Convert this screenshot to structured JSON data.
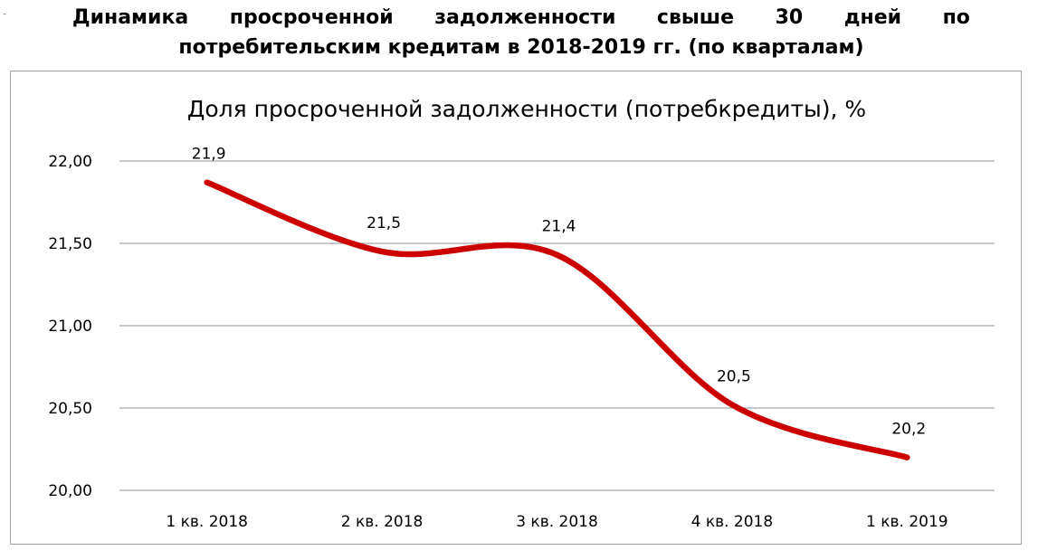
{
  "marker": "-",
  "heading": {
    "line1_words": [
      "Динамика",
      "просроченной",
      "задолженности",
      "свыше",
      "30",
      "дней",
      "по"
    ],
    "line2": "потребительским кредитам в 2018-2019 гг. (по кварталам)"
  },
  "chart_data": {
    "type": "line",
    "title": "Доля просроченной задолженности (потребкредиты), %",
    "categories": [
      "1 кв. 2018",
      "2 кв. 2018",
      "3 кв. 2018",
      "4 кв. 2018",
      "1 кв. 2019"
    ],
    "series": [
      {
        "values": [
          21.87,
          21.45,
          21.43,
          20.52,
          20.2
        ],
        "data_labels": [
          "21,9",
          "21,5",
          "21,4",
          "20,5",
          "20,2"
        ],
        "color": "#cc0000"
      }
    ],
    "y_ticks": [
      "20,00",
      "20,50",
      "21,00",
      "21,50",
      "22,00"
    ],
    "ylim": [
      20,
      22
    ],
    "grid": true,
    "smooth": true,
    "legend": "none",
    "gridline_color": "#a6a6a6"
  }
}
